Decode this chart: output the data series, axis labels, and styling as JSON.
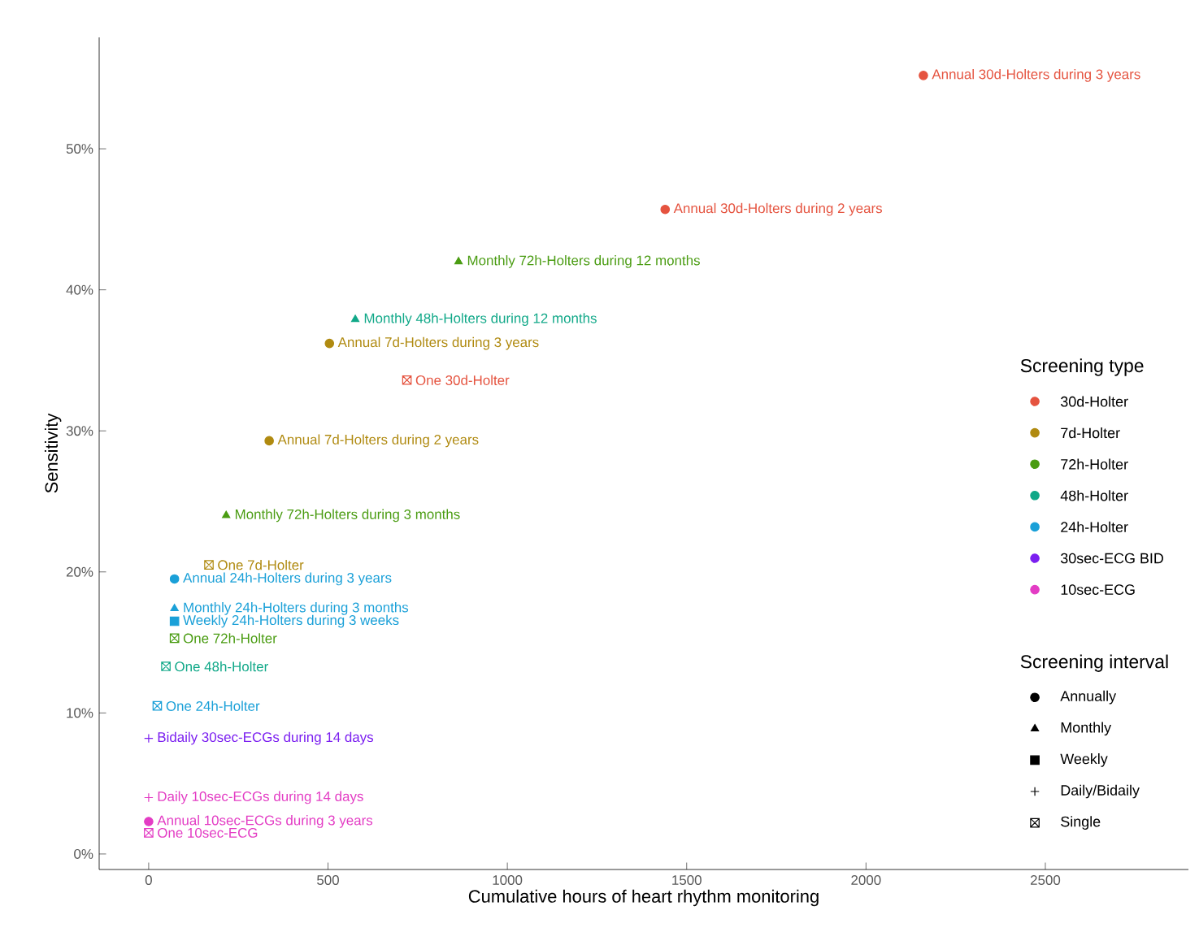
{
  "chart_data": {
    "type": "scatter",
    "xlabel": "Cumulative hours of heart rhythm monitoring",
    "ylabel": "Sensitivity",
    "xlim": [
      -138,
      2899
    ],
    "ylim": [
      -1.1,
      57.9
    ],
    "xticks": [
      0,
      500,
      1000,
      1500,
      2000,
      2500
    ],
    "yticks": [
      {
        "value": 0,
        "label": "0%"
      },
      {
        "value": 10,
        "label": "10%"
      },
      {
        "value": 20,
        "label": "20%"
      },
      {
        "value": 30,
        "label": "30%"
      },
      {
        "value": 40,
        "label": "40%"
      },
      {
        "value": 50,
        "label": "50%"
      }
    ],
    "grid": false,
    "legend": "right",
    "legend_title": "Screening type",
    "series": [
      {
        "color": "#e5533f",
        "marker": "circle",
        "x": [
          2160,
          1440
        ],
        "values": [
          55.2,
          45.7
        ]
      },
      {
        "color": "#e5533f",
        "x": [
          720
        ],
        "values": [
          33.6
        ]
      },
      {
        "color": "#b08a10",
        "marker": "circle",
        "x": [
          504,
          336
        ],
        "values": [
          36.2,
          29.3
        ]
      },
      {
        "color": "#b08a10",
        "x": [
          168
        ],
        "values": [
          20.5
        ]
      },
      {
        "color": "#4a9c12",
        "marker": "triangle",
        "x": [
          864,
          216
        ],
        "values": [
          42.0,
          24.0
        ]
      },
      {
        "color": "#4a9c12",
        "x": [
          72
        ],
        "values": [
          15.3
        ]
      },
      {
        "color": "#10a888",
        "marker": "triangle",
        "x": [
          576
        ],
        "values": [
          37.9
        ]
      },
      {
        "color": "#10a888",
        "x": [
          48
        ],
        "values": [
          13.3
        ]
      },
      {
        "color": "#1aa0d8",
        "marker": "circle",
        "x": [
          72
        ],
        "values": [
          19.5
        ]
      },
      {
        "color": "#1aa0d8",
        "marker": "triangle",
        "x": [
          72
        ],
        "values": [
          17.4
        ]
      },
      {
        "color": "#1aa0d8",
        "marker": "square",
        "x": [
          72
        ],
        "values": [
          16.5
        ]
      },
      {
        "color": "#1aa0d8",
        "x": [
          24
        ],
        "values": [
          10.5
        ]
      },
      {
        "color": "#7b1ff0",
        "marker": "cross",
        "x": [
          0
        ],
        "values": [
          8.2
        ]
      },
      {
        "color": "#e33cc4",
        "marker": "cross",
        "x": [
          0
        ],
        "values": [
          4.0
        ]
      },
      {
        "color": "#e33cc4",
        "marker": "circle",
        "x": [
          0
        ],
        "values": [
          2.3
        ]
      },
      {
        "color": "#e33cc4",
        "x": [
          0
        ],
        "values": [
          1.5
        ]
      },
      {
        "name": "30d-Holter",
        "color": "#e5533f",
        "marker": "circle"
      },
      {
        "name": "7d-Holter",
        "color": "#b08a10",
        "marker": "circle"
      },
      {
        "name": "72h-Holter",
        "color": "#4a9c12",
        "marker": "circle"
      },
      {
        "name": "48h-Holter",
        "color": "#10a888",
        "marker": "circle"
      },
      {
        "name": "24h-Holter",
        "color": "#1aa0d8",
        "marker": "circle"
      },
      {
        "name": "30sec-ECG BID",
        "color": "#7b1ff0",
        "marker": "circle"
      },
      {
        "name": "10sec-ECG",
        "color": "#e33cc4",
        "marker": "circle"
      },
      {
        "name": "Annually",
        "color": "#000000",
        "marker": "circle"
      },
      {
        "name": "Monthly",
        "color": "#000000",
        "marker": "triangle"
      },
      {
        "name": "Weekly",
        "color": "#000000",
        "marker": "square"
      },
      {
        "name": "Daily/Bidaily",
        "color": "#000000",
        "marker": "cross"
      },
      {
        "name": "Single",
        "color": "#000000"
      }
    ],
    "annotations": [
      "Screening interval",
      {
        "text": "Annual 30d-Holters during 3 years",
        "x": 2160,
        "y": 55.2
      },
      {
        "text": "Annual 30d-Holters during 2 years",
        "x": 1440,
        "y": 45.7
      },
      {
        "text": "Monthly 72h-Holters during 12 months",
        "x": 864,
        "y": 42.0
      },
      {
        "text": "Monthly 48h-Holters during 12 months",
        "x": 576,
        "y": 37.9
      },
      {
        "text": "Annual 7d-Holters during 3 years",
        "x": 504,
        "y": 36.2
      },
      {
        "text": "One 30d-Holter",
        "x": 720,
        "y": 33.6
      },
      {
        "text": "Annual 7d-Holters during 2 years",
        "x": 336,
        "y": 29.3
      },
      {
        "text": "Monthly 72h-Holters during 3 months",
        "x": 216,
        "y": 24.0
      },
      {
        "text": "One 7d-Holter",
        "x": 168,
        "y": 20.5
      },
      {
        "text": "Annual 24h-Holters during 3 years",
        "x": 72,
        "y": 19.5
      },
      {
        "text": "Monthly 24h-Holters during 3 months",
        "x": 72,
        "y": 17.4
      },
      {
        "text": "Weekly 24h-Holters during 3 weeks",
        "x": 72,
        "y": 16.5
      },
      {
        "text": "One 72h-Holter",
        "x": 72,
        "y": 15.3
      },
      {
        "text": "One 48h-Holter",
        "x": 48,
        "y": 13.3
      },
      {
        "text": "One 24h-Holter",
        "x": 24,
        "y": 10.5
      },
      {
        "text": "Bidaily 30sec-ECGs during 14 days",
        "x": 0,
        "y": 8.2
      },
      {
        "text": "Daily 10sec-ECGs during 14 days",
        "x": 0,
        "y": 4.0
      },
      {
        "text": "Annual 10sec-ECGs during 3 years",
        "x": 0,
        "y": 2.3
      },
      {
        "text": "One 10sec-ECG",
        "x": 0,
        "y": 1.5
      }
    ]
  }
}
